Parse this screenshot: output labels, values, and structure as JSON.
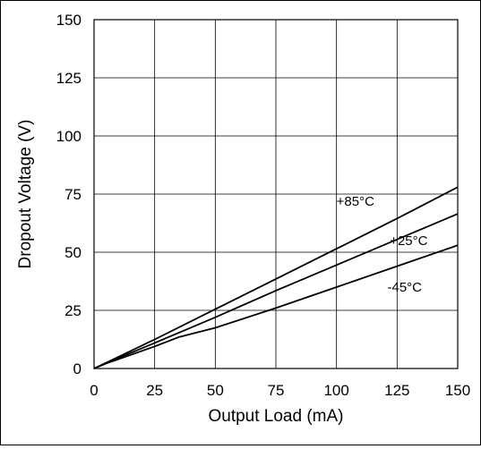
{
  "chart_data": {
    "type": "line",
    "title": "",
    "xlabel": "Output Load (mA)",
    "ylabel": "Dropout Voltage (V)",
    "xlim": [
      0,
      150
    ],
    "ylim": [
      0,
      150
    ],
    "xticks": [
      0,
      25,
      50,
      75,
      100,
      125,
      150
    ],
    "yticks": [
      0,
      25,
      50,
      75,
      100,
      125,
      150
    ],
    "grid": true,
    "legend": "none",
    "series": [
      {
        "name": "+85°C",
        "x": [
          0,
          5,
          10,
          25,
          50,
          75,
          100,
          125,
          150
        ],
        "y": [
          0,
          2.5,
          5,
          12.5,
          25.5,
          38.5,
          51.5,
          64.5,
          78
        ]
      },
      {
        "name": "+25°C",
        "x": [
          0,
          5,
          10,
          25,
          50,
          75,
          100,
          125,
          150
        ],
        "y": [
          0,
          2.3,
          4.5,
          11,
          22,
          33.5,
          44.5,
          55.5,
          66.5
        ]
      },
      {
        "name": "-45°C",
        "x": [
          0,
          5,
          10,
          25,
          35,
          50,
          75,
          100,
          125,
          150
        ],
        "y": [
          0,
          2.2,
          4,
          9.5,
          13.5,
          17.5,
          26,
          35,
          44,
          53
        ]
      }
    ],
    "annotations": [
      {
        "text": "+85°C",
        "x": 100,
        "y": 70
      },
      {
        "text": "+25°C",
        "x": 122,
        "y": 53
      },
      {
        "text": "-45°C",
        "x": 121,
        "y": 33
      }
    ]
  }
}
